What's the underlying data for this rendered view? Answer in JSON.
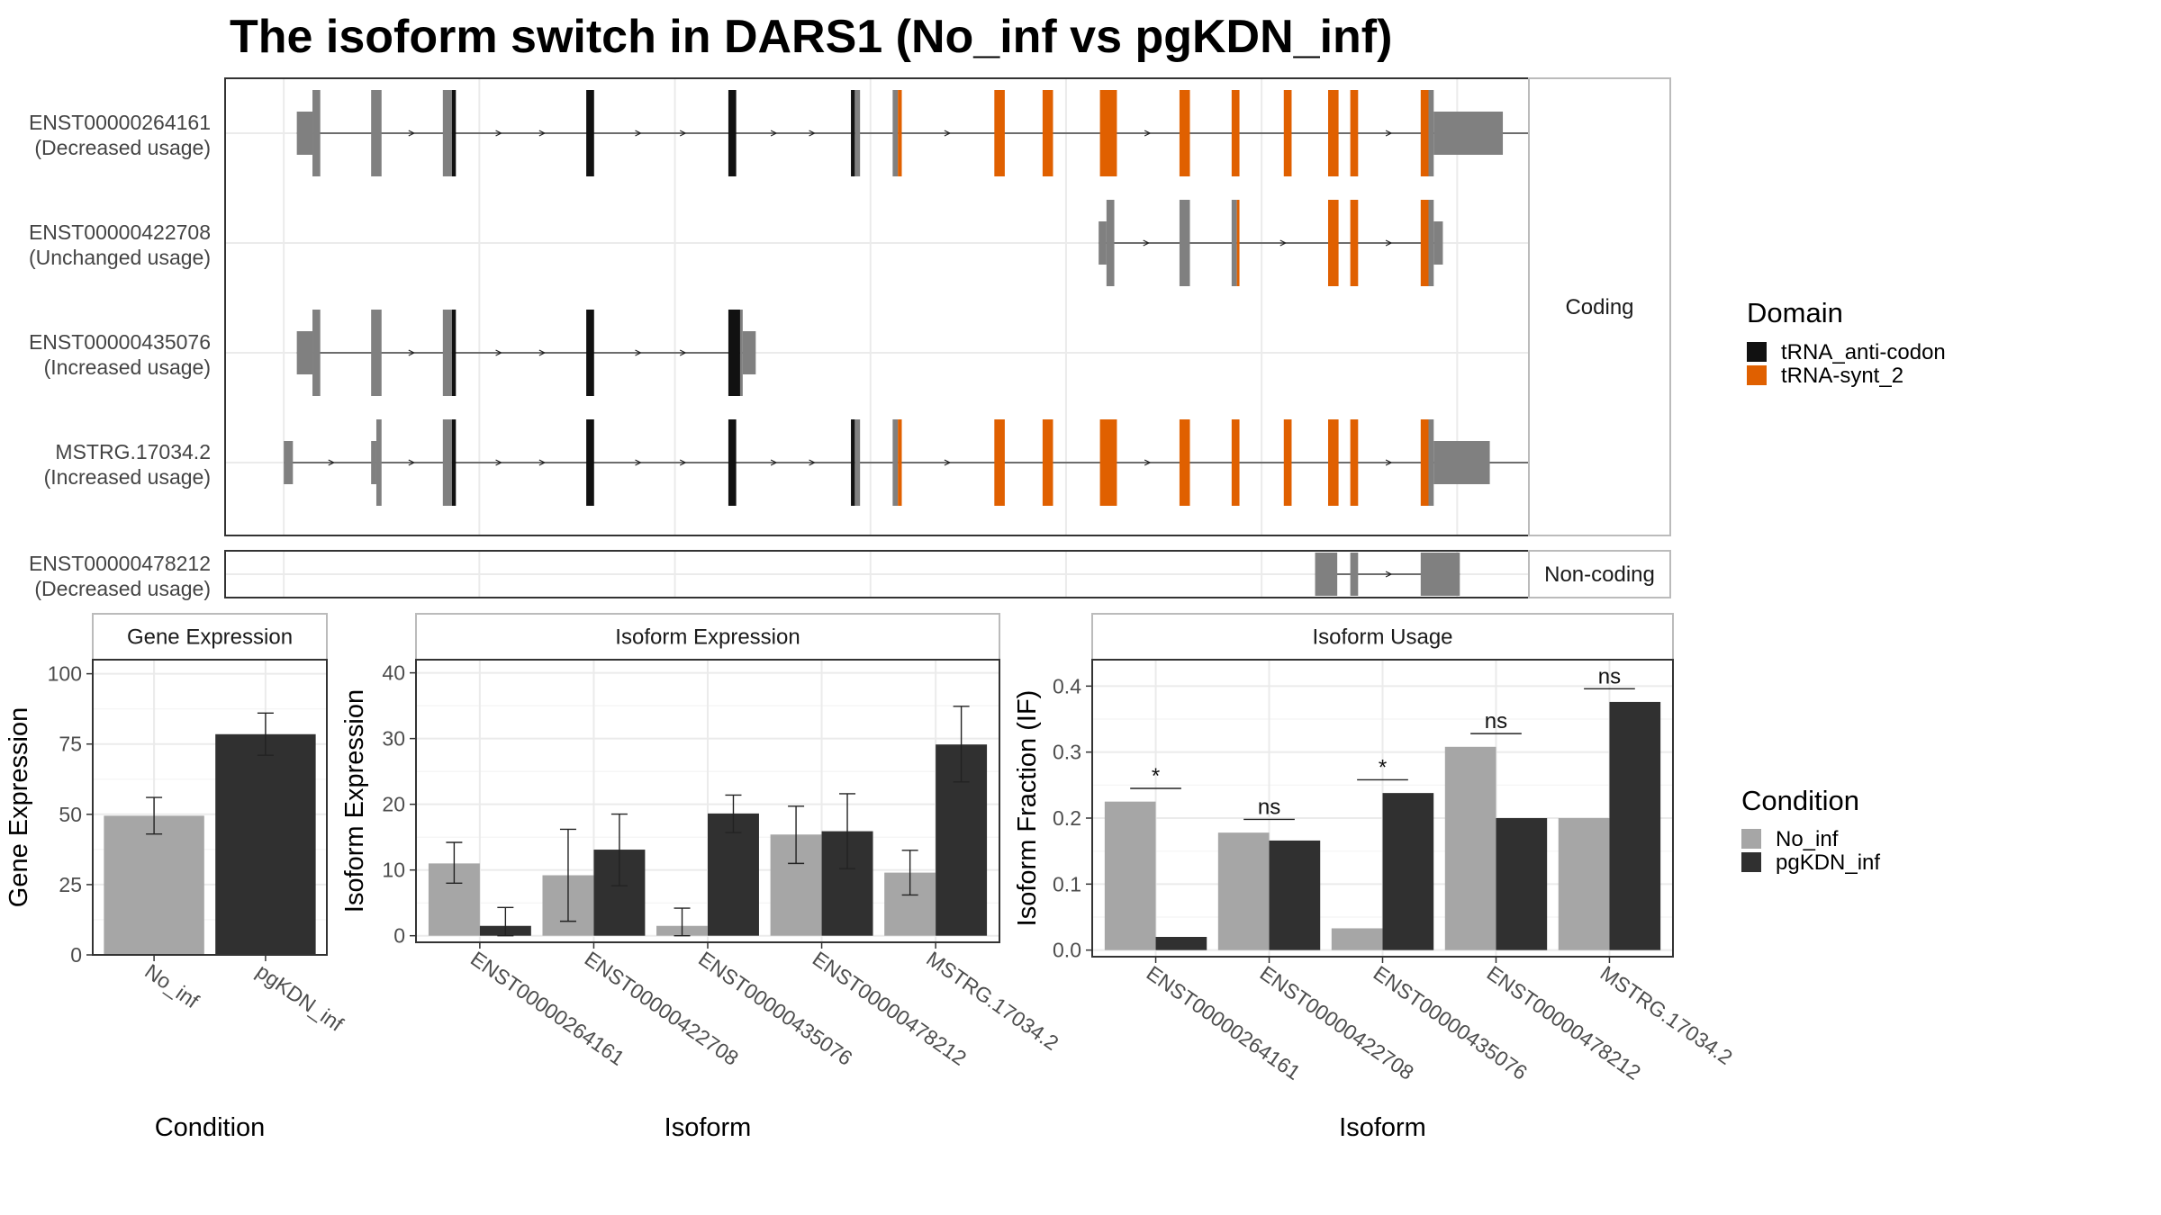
{
  "title": "The isoform switch in DARS1 (No_inf vs pgKDN_inf)",
  "colors": {
    "intron_line": "#222222",
    "utr": "#808080",
    "cds": "#808080",
    "tRNA_anti_codon": "#111111",
    "tRNA_synt_2": "#E06000",
    "No_inf": "#A6A6A6",
    "pgKDN_inf": "#303030",
    "grid": "#EBEBEB",
    "panel_border": "#333333",
    "strip_border": "#BBBBBB"
  },
  "legends": {
    "domain": {
      "title": "Domain",
      "items": [
        {
          "label": "tRNA_anti-codon",
          "color_key": "tRNA_anti_codon"
        },
        {
          "label": "tRNA-synt_2",
          "color_key": "tRNA_synt_2"
        }
      ]
    },
    "condition": {
      "title": "Condition",
      "items": [
        {
          "label": "No_inf",
          "color_key": "No_inf"
        },
        {
          "label": "pgKDN_inf",
          "color_key": "pgKDN_inf"
        }
      ]
    }
  },
  "chart_data": [
    {
      "type": "gene_structure",
      "facets": [
        {
          "name": "Coding",
          "rows": [
            0,
            1,
            2,
            3
          ]
        },
        {
          "name": "Non-coding",
          "rows": [
            4
          ]
        }
      ],
      "xlim": [
        0,
        1000
      ],
      "transcripts": [
        {
          "id": "ENST00000264161",
          "usage": "(Decreased usage)",
          "span": [
            55,
            1005
          ],
          "exons": [
            {
              "s": 55,
              "e": 67,
              "type": "utr"
            },
            {
              "s": 67,
              "e": 73,
              "type": "cds"
            },
            {
              "s": 112,
              "e": 120,
              "type": "cds"
            },
            {
              "s": 167,
              "e": 174,
              "type": "cds"
            },
            {
              "s": 174,
              "e": 177,
              "type": "tRNA_anti_codon"
            },
            {
              "s": 277,
              "e": 283,
              "type": "tRNA_anti_codon"
            },
            {
              "s": 386,
              "e": 392,
              "type": "tRNA_anti_codon"
            },
            {
              "s": 480,
              "e": 483,
              "type": "tRNA_anti_codon"
            },
            {
              "s": 483,
              "e": 487,
              "type": "cds"
            },
            {
              "s": 512,
              "e": 516,
              "type": "cds"
            },
            {
              "s": 516,
              "e": 519,
              "type": "tRNA_synt_2"
            },
            {
              "s": 590,
              "e": 598,
              "type": "tRNA_synt_2"
            },
            {
              "s": 627,
              "e": 635,
              "type": "tRNA_synt_2"
            },
            {
              "s": 671,
              "e": 684,
              "type": "tRNA_synt_2"
            },
            {
              "s": 732,
              "e": 740,
              "type": "tRNA_synt_2"
            },
            {
              "s": 772,
              "e": 778,
              "type": "tRNA_synt_2"
            },
            {
              "s": 812,
              "e": 818,
              "type": "tRNA_synt_2"
            },
            {
              "s": 846,
              "e": 854,
              "type": "tRNA_synt_2"
            },
            {
              "s": 863,
              "e": 869,
              "type": "tRNA_synt_2"
            },
            {
              "s": 917,
              "e": 923,
              "type": "tRNA_synt_2"
            },
            {
              "s": 923,
              "e": 927,
              "type": "cds"
            },
            {
              "s": 927,
              "e": 980,
              "type": "utr"
            }
          ]
        },
        {
          "id": "ENST00000422708",
          "usage": "(Unchanged usage)",
          "span": [
            670,
            930
          ],
          "exons": [
            {
              "s": 670,
              "e": 676,
              "type": "utr"
            },
            {
              "s": 676,
              "e": 682,
              "type": "cds"
            },
            {
              "s": 732,
              "e": 740,
              "type": "cds"
            },
            {
              "s": 772,
              "e": 776,
              "type": "cds"
            },
            {
              "s": 776,
              "e": 778,
              "type": "tRNA_synt_2"
            },
            {
              "s": 846,
              "e": 854,
              "type": "tRNA_synt_2"
            },
            {
              "s": 863,
              "e": 869,
              "type": "tRNA_synt_2"
            },
            {
              "s": 917,
              "e": 923,
              "type": "tRNA_synt_2"
            },
            {
              "s": 923,
              "e": 927,
              "type": "cds"
            },
            {
              "s": 927,
              "e": 934,
              "type": "utr"
            }
          ]
        },
        {
          "id": "ENST00000435076",
          "usage": "(Increased usage)",
          "span": [
            55,
            405
          ],
          "exons": [
            {
              "s": 55,
              "e": 67,
              "type": "utr"
            },
            {
              "s": 67,
              "e": 73,
              "type": "cds"
            },
            {
              "s": 112,
              "e": 120,
              "type": "cds"
            },
            {
              "s": 167,
              "e": 174,
              "type": "cds"
            },
            {
              "s": 174,
              "e": 177,
              "type": "tRNA_anti_codon"
            },
            {
              "s": 277,
              "e": 283,
              "type": "tRNA_anti_codon"
            },
            {
              "s": 386,
              "e": 395,
              "type": "tRNA_anti_codon"
            },
            {
              "s": 395,
              "e": 397,
              "type": "cds"
            },
            {
              "s": 397,
              "e": 407,
              "type": "utr"
            }
          ]
        },
        {
          "id": "MSTRG.17034.2",
          "usage": "(Increased usage)",
          "span": [
            45,
            1000
          ],
          "exons": [
            {
              "s": 45,
              "e": 52,
              "type": "utr"
            },
            {
              "s": 112,
              "e": 116,
              "type": "utr"
            },
            {
              "s": 116,
              "e": 120,
              "type": "cds"
            },
            {
              "s": 167,
              "e": 174,
              "type": "cds"
            },
            {
              "s": 174,
              "e": 177,
              "type": "tRNA_anti_codon"
            },
            {
              "s": 277,
              "e": 283,
              "type": "tRNA_anti_codon"
            },
            {
              "s": 386,
              "e": 392,
              "type": "tRNA_anti_codon"
            },
            {
              "s": 480,
              "e": 483,
              "type": "tRNA_anti_codon"
            },
            {
              "s": 483,
              "e": 487,
              "type": "cds"
            },
            {
              "s": 512,
              "e": 516,
              "type": "cds"
            },
            {
              "s": 516,
              "e": 519,
              "type": "tRNA_synt_2"
            },
            {
              "s": 590,
              "e": 598,
              "type": "tRNA_synt_2"
            },
            {
              "s": 627,
              "e": 635,
              "type": "tRNA_synt_2"
            },
            {
              "s": 671,
              "e": 684,
              "type": "tRNA_synt_2"
            },
            {
              "s": 732,
              "e": 740,
              "type": "tRNA_synt_2"
            },
            {
              "s": 772,
              "e": 778,
              "type": "tRNA_synt_2"
            },
            {
              "s": 812,
              "e": 818,
              "type": "tRNA_synt_2"
            },
            {
              "s": 846,
              "e": 854,
              "type": "tRNA_synt_2"
            },
            {
              "s": 863,
              "e": 869,
              "type": "tRNA_synt_2"
            },
            {
              "s": 917,
              "e": 923,
              "type": "tRNA_synt_2"
            },
            {
              "s": 923,
              "e": 927,
              "type": "cds"
            },
            {
              "s": 927,
              "e": 970,
              "type": "utr"
            }
          ]
        },
        {
          "id": "ENST00000478212",
          "usage": "(Decreased usage)",
          "span": [
            836,
            947
          ],
          "exons": [
            {
              "s": 836,
              "e": 853,
              "type": "utr"
            },
            {
              "s": 863,
              "e": 869,
              "type": "utr"
            },
            {
              "s": 917,
              "e": 947,
              "type": "utr"
            }
          ]
        }
      ]
    },
    {
      "type": "bar",
      "title": "Gene Expression",
      "xlabel": "Condition",
      "ylabel": "Gene Expression",
      "ylim": [
        0,
        105
      ],
      "yticks": [
        0,
        25,
        50,
        75,
        100
      ],
      "categories": [
        "No_inf",
        "pgKDN_inf"
      ],
      "values": [
        49.5,
        78.5
      ],
      "errors": [
        [
          43,
          56
        ],
        [
          71,
          86
        ]
      ],
      "color_keys": [
        "No_inf",
        "pgKDN_inf"
      ]
    },
    {
      "type": "bar",
      "title": "Isoform Expression",
      "xlabel": "Isoform",
      "ylabel": "Isoform Expression",
      "ylim": [
        -1,
        42
      ],
      "yticks": [
        0,
        10,
        20,
        30,
        40
      ],
      "categories": [
        "ENST00000264161",
        "ENST00000422708",
        "ENST00000435076",
        "ENST00000478212",
        "MSTRG.17034.2"
      ],
      "series": [
        {
          "name": "No_inf",
          "values": [
            11,
            9.2,
            1.5,
            15.4,
            9.6
          ],
          "errors": [
            [
              8,
              14.2
            ],
            [
              2.2,
              16.2
            ],
            [
              0,
              4.2
            ],
            [
              11,
              19.7
            ],
            [
              6.2,
              13
            ]
          ]
        },
        {
          "name": "pgKDN_inf",
          "values": [
            1.5,
            13.1,
            18.6,
            15.9,
            29.1
          ],
          "errors": [
            [
              0,
              4.3
            ],
            [
              7.6,
              18.5
            ],
            [
              15.7,
              21.4
            ],
            [
              10.2,
              21.6
            ],
            [
              23.4,
              34.9
            ]
          ]
        }
      ]
    },
    {
      "type": "bar",
      "title": "Isoform Usage",
      "xlabel": "Isoform",
      "ylabel": "Isoform Fraction (IF)",
      "ylim": [
        -0.01,
        0.44
      ],
      "yticks": [
        0.0,
        0.1,
        0.2,
        0.3,
        0.4
      ],
      "ytick_labels": [
        "0.0",
        "0.1",
        "0.2",
        "0.3",
        "0.4"
      ],
      "categories": [
        "ENST00000264161",
        "ENST00000422708",
        "ENST00000435076",
        "ENST00000478212",
        "MSTRG.17034.2"
      ],
      "series": [
        {
          "name": "No_inf",
          "values": [
            0.225,
            0.178,
            0.033,
            0.308,
            0.2
          ]
        },
        {
          "name": "pgKDN_inf",
          "values": [
            0.02,
            0.166,
            0.238,
            0.2,
            0.376
          ]
        }
      ],
      "significance": [
        {
          "label": "*",
          "y": 0.245
        },
        {
          "label": "ns",
          "y": 0.198
        },
        {
          "label": "*",
          "y": 0.258
        },
        {
          "label": "ns",
          "y": 0.328
        },
        {
          "label": "ns",
          "y": 0.396
        }
      ]
    }
  ]
}
